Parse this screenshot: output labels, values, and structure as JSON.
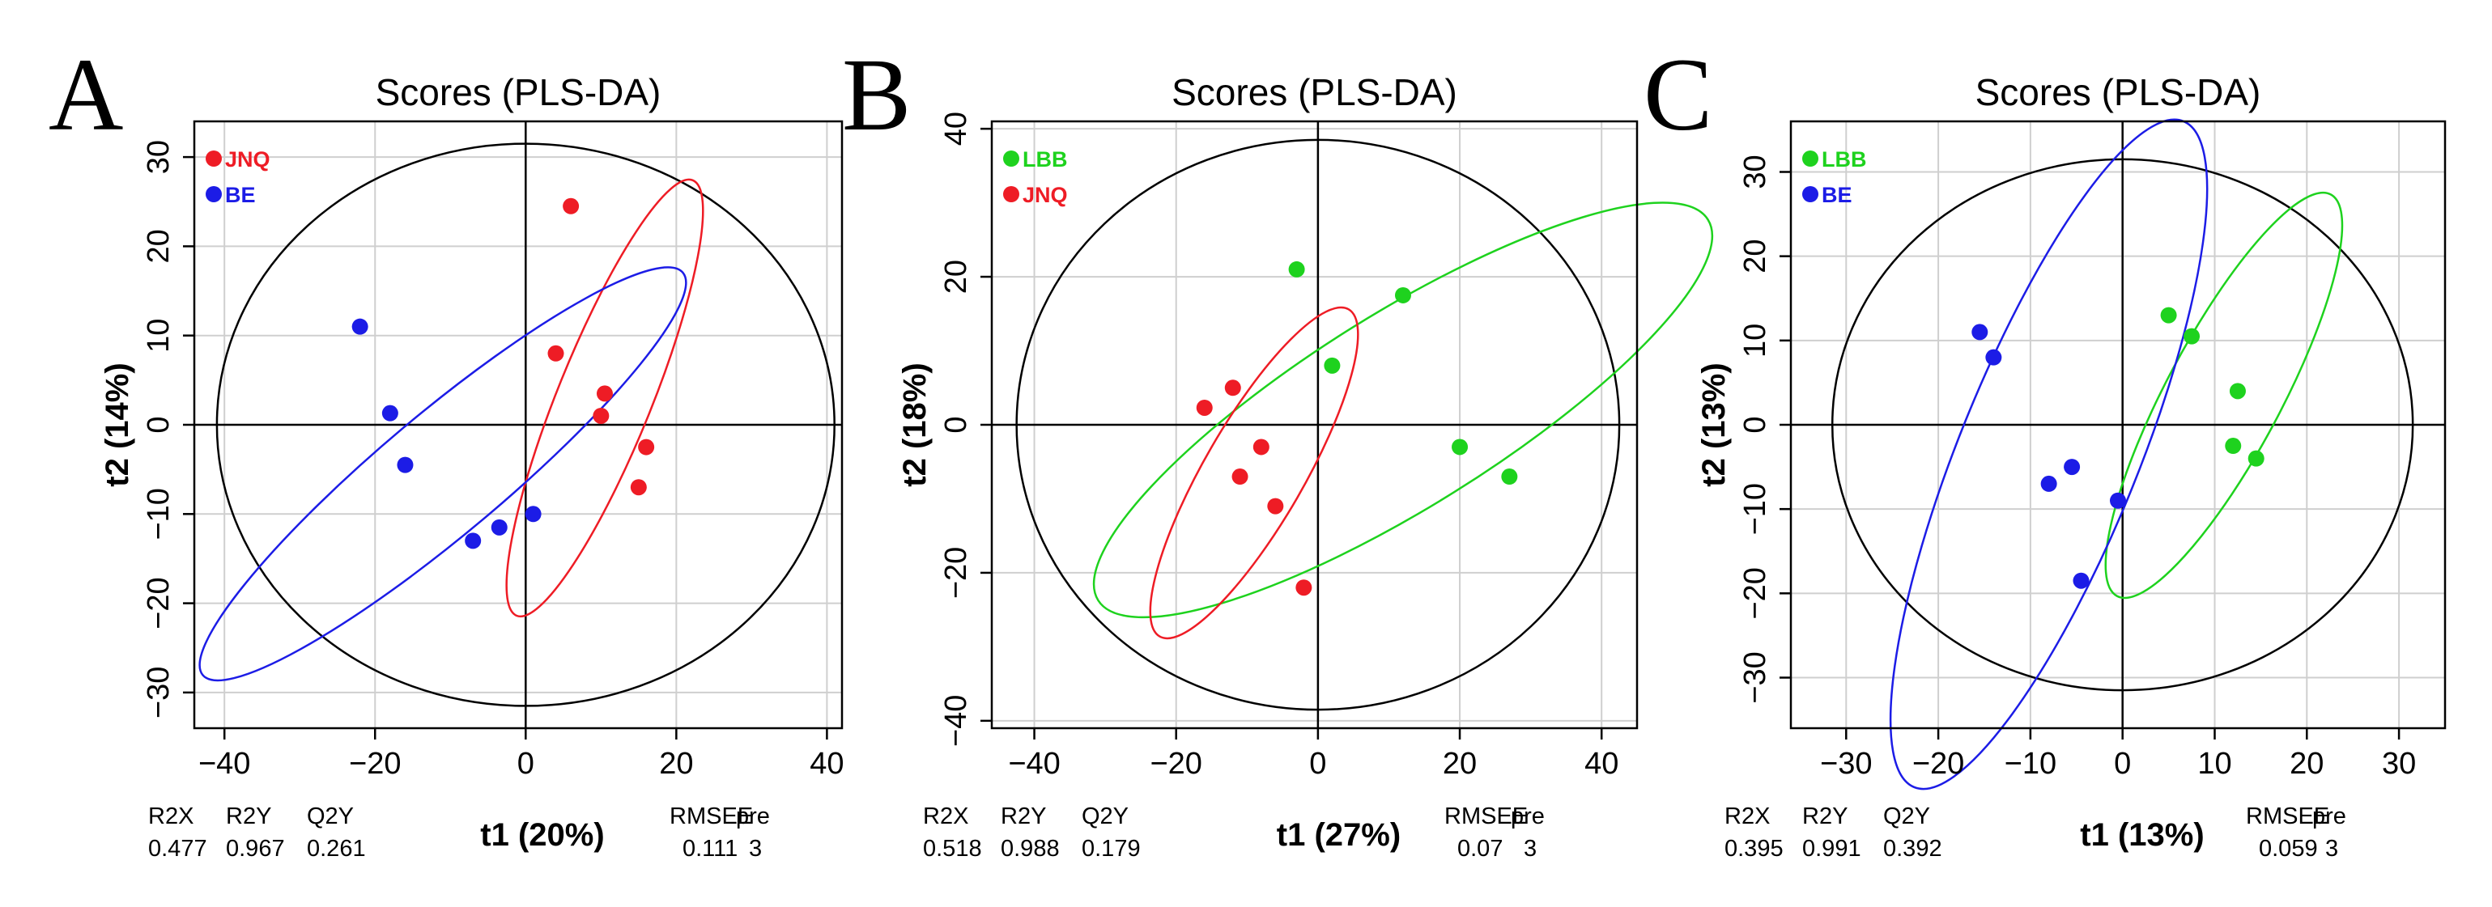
{
  "colors": {
    "red": "#ee1c25",
    "blue": "#1c1ce6",
    "green": "#1ed21e",
    "grid": "#cfcfcf",
    "axis": "#000000"
  },
  "chart_data": [
    {
      "type": "scatter",
      "panel": "A",
      "title": "Scores (PLS-DA)",
      "xlabel": "t1 (20%)",
      "ylabel": "t2 (14%)",
      "xlim": [
        -44,
        42
      ],
      "ylim": [
        -34,
        34
      ],
      "xticks": [
        -40,
        -20,
        0,
        20,
        40
      ],
      "yticks": [
        -30,
        -20,
        -10,
        0,
        10,
        20,
        30
      ],
      "grid": true,
      "legend_position": "top-left",
      "series": [
        {
          "name": "JNQ",
          "color": "red",
          "x": [
            6,
            4,
            10.5,
            10,
            16,
            15
          ],
          "y": [
            24.5,
            8,
            3.5,
            1,
            -2.5,
            -7
          ]
        },
        {
          "name": "BE",
          "color": "blue",
          "x": [
            -22,
            -18,
            -16,
            -7,
            -3.5,
            1
          ],
          "y": [
            11,
            1.3,
            -4.5,
            -13,
            -11.5,
            -10
          ]
        }
      ],
      "hotelling_ellipse": {
        "cx": 0,
        "cy": 0,
        "rx": 41,
        "ry": 31.5
      },
      "group_ellipses": [
        {
          "color": "red",
          "cx": 10.5,
          "cy": 3,
          "rx": 24,
          "ry": 4.8,
          "angle_deg": -68
        },
        {
          "color": "blue",
          "cx": -11,
          "cy": -5.5,
          "rx": 32,
          "ry": 6.2,
          "angle_deg": -40
        }
      ],
      "stats": {
        "labels": [
          "R2X",
          "R2Y",
          "Q2Y",
          "RMSEE",
          "pre"
        ],
        "values": [
          "0.477",
          "0.967",
          "0.261",
          "0.111",
          "3"
        ]
      }
    },
    {
      "type": "scatter",
      "panel": "B",
      "title": "Scores (PLS-DA)",
      "xlabel": "t1 (27%)",
      "ylabel": "t2 (18%)",
      "xlim": [
        -46,
        45
      ],
      "ylim": [
        -41,
        41
      ],
      "xticks": [
        -40,
        -20,
        0,
        20,
        40
      ],
      "yticks": [
        -40,
        -20,
        0,
        20,
        40
      ],
      "grid": true,
      "legend_position": "top-left",
      "series": [
        {
          "name": "LBB",
          "color": "green",
          "x": [
            -3,
            12,
            2,
            20,
            27
          ],
          "y": [
            21,
            17.5,
            8,
            -3,
            -7
          ]
        },
        {
          "name": "JNQ",
          "color": "red",
          "x": [
            -16,
            -12,
            -11,
            -8,
            -6,
            -2
          ],
          "y": [
            2.3,
            5,
            -7,
            -3,
            -11,
            -22
          ]
        }
      ],
      "hotelling_ellipse": {
        "cx": 0,
        "cy": 0,
        "rx": 42.5,
        "ry": 38.5
      },
      "group_ellipses": [
        {
          "color": "green",
          "cx": 12,
          "cy": 2,
          "rx": 39,
          "ry": 10.5,
          "angle_deg": -32
        },
        {
          "color": "red",
          "cx": -9,
          "cy": -6.5,
          "rx": 20.5,
          "ry": 5.4,
          "angle_deg": -60
        }
      ],
      "stats": {
        "labels": [
          "R2X",
          "R2Y",
          "Q2Y",
          "RMSEE",
          "pre"
        ],
        "values": [
          "0.518",
          "0.988",
          "0.179",
          "0.07",
          "3"
        ]
      }
    },
    {
      "type": "scatter",
      "panel": "C",
      "title": "Scores (PLS-DA)",
      "xlabel": "t1 (13%)",
      "ylabel": "t2 (13%)",
      "xlim": [
        -36,
        35
      ],
      "ylim": [
        -36,
        36
      ],
      "xticks": [
        -30,
        -20,
        -10,
        0,
        10,
        20,
        30
      ],
      "yticks": [
        -30,
        -20,
        -10,
        0,
        10,
        20,
        30
      ],
      "grid": true,
      "legend_position": "top-left",
      "series": [
        {
          "name": "LBB",
          "color": "green",
          "x": [
            5,
            7.5,
            12.5,
            12,
            14.5
          ],
          "y": [
            13,
            10.5,
            4,
            -2.5,
            -4
          ]
        },
        {
          "name": "BE",
          "color": "blue",
          "x": [
            -15.5,
            -14,
            -8,
            -5.5,
            -0.5,
            -4.5
          ],
          "y": [
            11,
            8,
            -7,
            -5,
            -9,
            -18.5
          ]
        }
      ],
      "hotelling_ellipse": {
        "cx": 0,
        "cy": 0,
        "rx": 31.5,
        "ry": 31.5
      },
      "group_ellipses": [
        {
          "color": "green",
          "cx": 11,
          "cy": 3.5,
          "rx": 19,
          "ry": 4.8,
          "angle_deg": -62
        },
        {
          "color": "blue",
          "cx": -8,
          "cy": -3.5,
          "rx": 30,
          "ry": 7.5,
          "angle_deg": -68
        }
      ],
      "stats": {
        "labels": [
          "R2X",
          "R2Y",
          "Q2Y",
          "RMSEE",
          "pre"
        ],
        "values": [
          "0.395",
          "0.991",
          "0.392",
          "0.059",
          "3"
        ]
      }
    }
  ]
}
